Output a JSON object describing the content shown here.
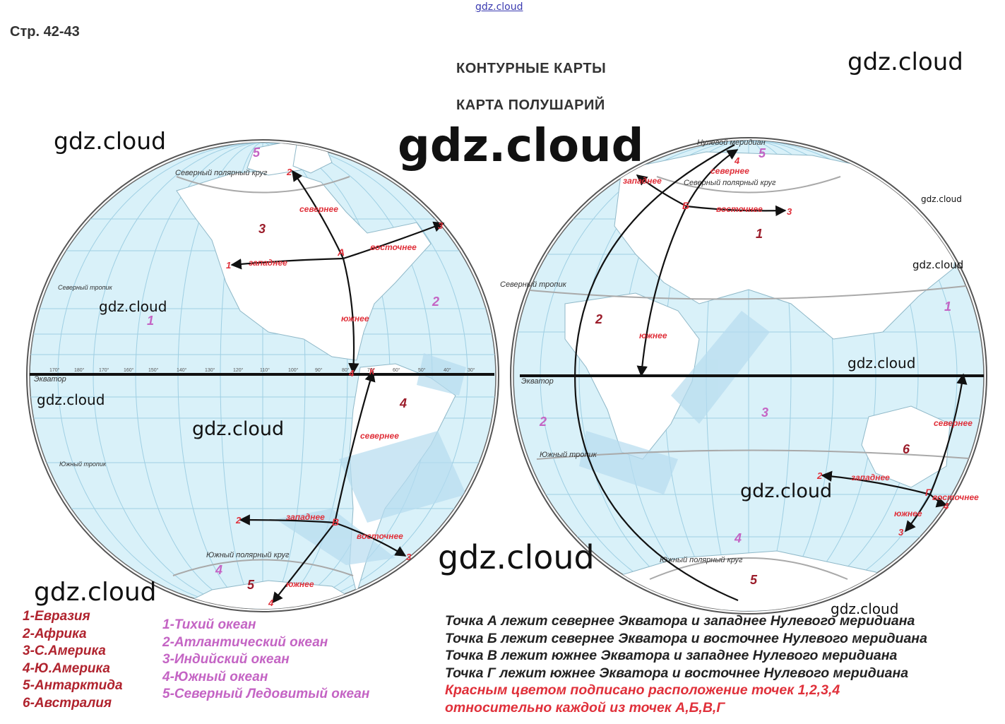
{
  "page_ref": "Стр. 42-43",
  "header": {
    "title1": "КОНТУРНЫЕ КАРТЫ",
    "title2": "КАРТА ПОЛУШАРИЙ"
  },
  "watermark": "gdz.cloud",
  "colors": {
    "ocean": "#d9f1f9",
    "grid": "#9fcfe3",
    "land": "#ffffff",
    "red_label": "#e0303a",
    "continent_number": "#9b1c2a",
    "ocean_number": "#c464c4",
    "route": "#111111"
  },
  "west_map": {
    "circles": {
      "arctic": "Северный полярный круг",
      "tropic": "Северный тропик",
      "equator": "Экватор",
      "s_tropic": "Южный тропик",
      "antarctic": "Южный полярный круг"
    },
    "point_a": "А",
    "point_v": "В",
    "point_b_equator": "К",
    "labels": {
      "north": "севернее",
      "east": "восточнее",
      "west": "западнее",
      "south": "южнее",
      "north2": "севернее",
      "west2": "западнее",
      "east2": "восточнее",
      "south2": "южнее"
    },
    "numbers": {
      "n1": "1",
      "n2": "2",
      "n3": "3",
      "n4": "4",
      "m1": "1",
      "m2": "2",
      "m3": "3",
      "m4": "4",
      "c3": "3",
      "c4": "4",
      "c5": "5",
      "c5b": "5",
      "o1": "1",
      "o2": "2",
      "o4": "4"
    },
    "lon_ticks": [
      "170°",
      "180°",
      "170°",
      "160°",
      "150°",
      "140°",
      "130°",
      "120°",
      "110°",
      "100°",
      "90°",
      "80°",
      "70°",
      "60°",
      "50°",
      "40°",
      "30°"
    ]
  },
  "east_map": {
    "circles": {
      "prime": "Нулевой меридиан",
      "arctic": "Северный полярный круг",
      "tropic": "Северный тропик",
      "equator": "Экватор",
      "s_tropic": "Южный тропик",
      "antarctic": "Южный полярный круг"
    },
    "point_b": "Б",
    "point_g": "Г",
    "labels": {
      "north": "севернее",
      "west": "западнее",
      "east": "восточнее",
      "south": "южнее",
      "north2": "севернее",
      "west2": "западнее",
      "east2": "восточнее",
      "south2": "южнее"
    },
    "numbers": {
      "n3": "3",
      "n4": "4",
      "m2": "2",
      "m3": "3",
      "m4": "4",
      "c1": "1",
      "c2": "2",
      "c5": "5",
      "c6": "6",
      "o1": "1",
      "o2": "2",
      "o3": "3",
      "o4": "4",
      "o5": "5"
    }
  },
  "legend": {
    "continents": [
      "1-Евразия",
      "2-Африка",
      "3-С.Америка",
      "4-Ю.Америка",
      "5-Антарктида",
      "6-Австралия"
    ],
    "oceans": [
      "1-Тихий океан",
      "2-Атлантический океан",
      "3-Индийский океан",
      "4-Южный океан",
      "5-Северный Ледовитый океан"
    ]
  },
  "facts": [
    "Точка А лежит севернее Экватора и западнее Нулевого меридиана",
    "Точка Б лежит севернее Экватора и восточнее Нулевого меридиана",
    "Точка В лежит южнее Экватора и западнее Нулевого меридиана",
    "Точка Г лежит южнее Экватора и восточнее Нулевого меридиана"
  ],
  "note": [
    "Красным цветом подписано расположение точек 1,2,3,4",
    "относительно каждой из точек А,Б,В,Г"
  ]
}
